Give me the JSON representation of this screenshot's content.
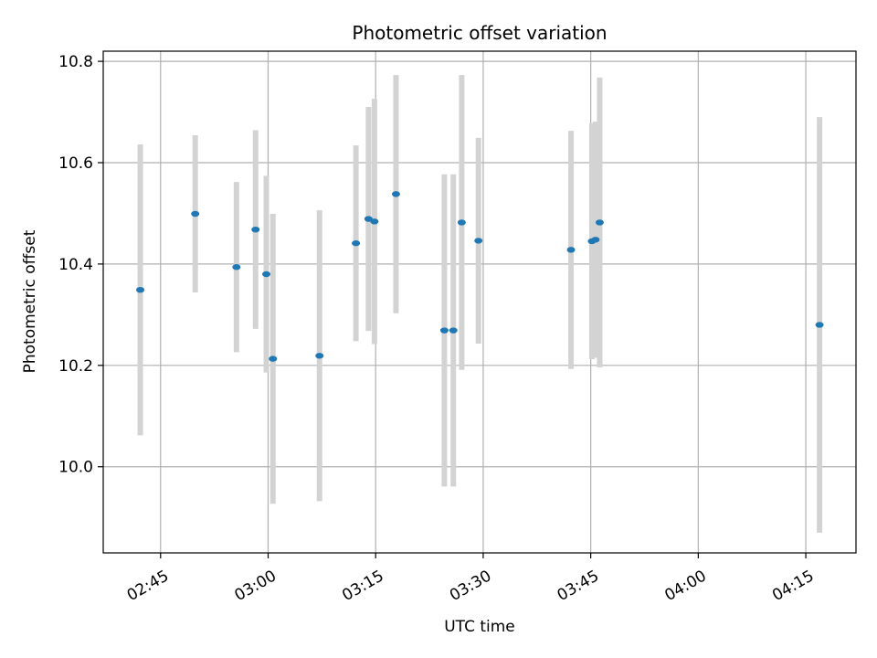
{
  "chart_data": {
    "type": "scatter",
    "title": "Photometric offset variation",
    "xlabel": "UTC time",
    "ylabel": "Photometric offset",
    "grid": true,
    "xlim": [
      "02:37",
      "04:22"
    ],
    "ylim": [
      9.83,
      10.82
    ],
    "x_ticks": [
      "02:45",
      "03:00",
      "03:15",
      "03:30",
      "03:45",
      "04:00",
      "04:15"
    ],
    "y_ticks": [
      "10.0",
      "10.2",
      "10.4",
      "10.6",
      "10.8"
    ],
    "colors": {
      "point": "#1f77b4",
      "errorbar": "#d3d3d3",
      "grid": "#b0b0b0"
    },
    "points": [
      {
        "time": "02:42:10",
        "value": 10.349,
        "err": 0.287
      },
      {
        "time": "02:49:50",
        "value": 10.499,
        "err": 0.155
      },
      {
        "time": "02:55:35",
        "value": 10.394,
        "err": 0.168
      },
      {
        "time": "02:58:15",
        "value": 10.468,
        "err": 0.196
      },
      {
        "time": "02:59:45",
        "value": 10.38,
        "err": 0.194
      },
      {
        "time": "03:00:40",
        "value": 10.213,
        "err": 0.286
      },
      {
        "time": "03:07:10",
        "value": 10.219,
        "err": 0.287
      },
      {
        "time": "03:12:15",
        "value": 10.441,
        "err": 0.193
      },
      {
        "time": "03:14:00",
        "value": 10.489,
        "err": 0.221
      },
      {
        "time": "03:14:50",
        "value": 10.484,
        "err": 0.242
      },
      {
        "time": "03:17:50",
        "value": 10.538,
        "err": 0.235
      },
      {
        "time": "03:24:35",
        "value": 10.269,
        "err": 0.308
      },
      {
        "time": "03:25:50",
        "value": 10.269,
        "err": 0.308
      },
      {
        "time": "03:27:00",
        "value": 10.482,
        "err": 0.291
      },
      {
        "time": "03:29:20",
        "value": 10.446,
        "err": 0.203
      },
      {
        "time": "03:42:15",
        "value": 10.428,
        "err": 0.235
      },
      {
        "time": "03:45:10",
        "value": 10.445,
        "err": 0.233
      },
      {
        "time": "03:45:40",
        "value": 10.448,
        "err": 0.233
      },
      {
        "time": "03:46:15",
        "value": 10.482,
        "err": 0.286
      },
      {
        "time": "04:16:55",
        "value": 10.28,
        "err": 0.41
      }
    ]
  }
}
